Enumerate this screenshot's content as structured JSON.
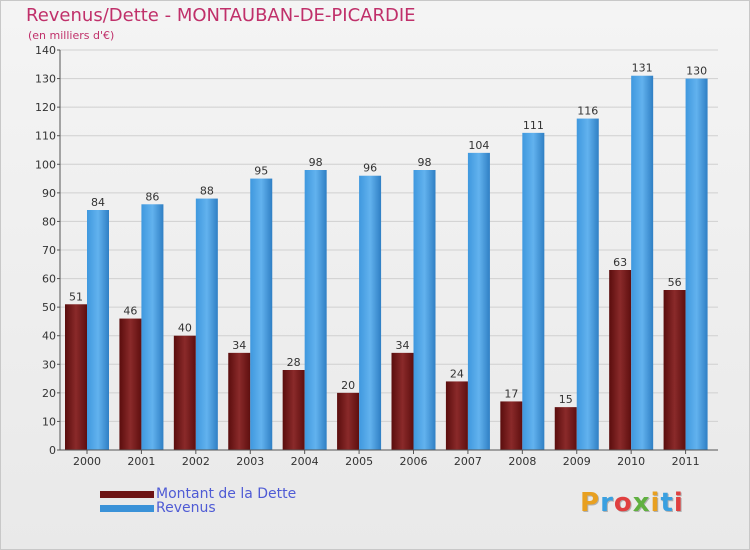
{
  "title": "Revenus/Dette - MONTAUBAN-DE-PICARDIE",
  "subtitle": "(en milliers d'€)",
  "legend": {
    "dette": "Montant de la Dette",
    "revenus": "Revenus"
  },
  "logo": "Proxiti",
  "colors": {
    "dette": "#6e1414",
    "revenus": "#3a92d8",
    "title": "#c0306a",
    "legend_text": "#4f5bd5"
  },
  "chart_data": {
    "type": "bar",
    "categories": [
      "2000",
      "2001",
      "2002",
      "2003",
      "2004",
      "2005",
      "2006",
      "2007",
      "2008",
      "2009",
      "2010",
      "2011"
    ],
    "series": [
      {
        "name": "Montant de la Dette",
        "values": [
          51,
          46,
          40,
          34,
          28,
          20,
          34,
          24,
          17,
          15,
          63,
          56
        ]
      },
      {
        "name": "Revenus",
        "values": [
          84,
          86,
          88,
          95,
          98,
          96,
          98,
          104,
          111,
          116,
          131,
          130
        ]
      }
    ],
    "ylim": [
      0,
      140
    ],
    "yticks": [
      0,
      10,
      20,
      30,
      40,
      50,
      60,
      70,
      80,
      90,
      100,
      110,
      120,
      130,
      140
    ],
    "grid": true,
    "legend_position": "bottom-left"
  }
}
